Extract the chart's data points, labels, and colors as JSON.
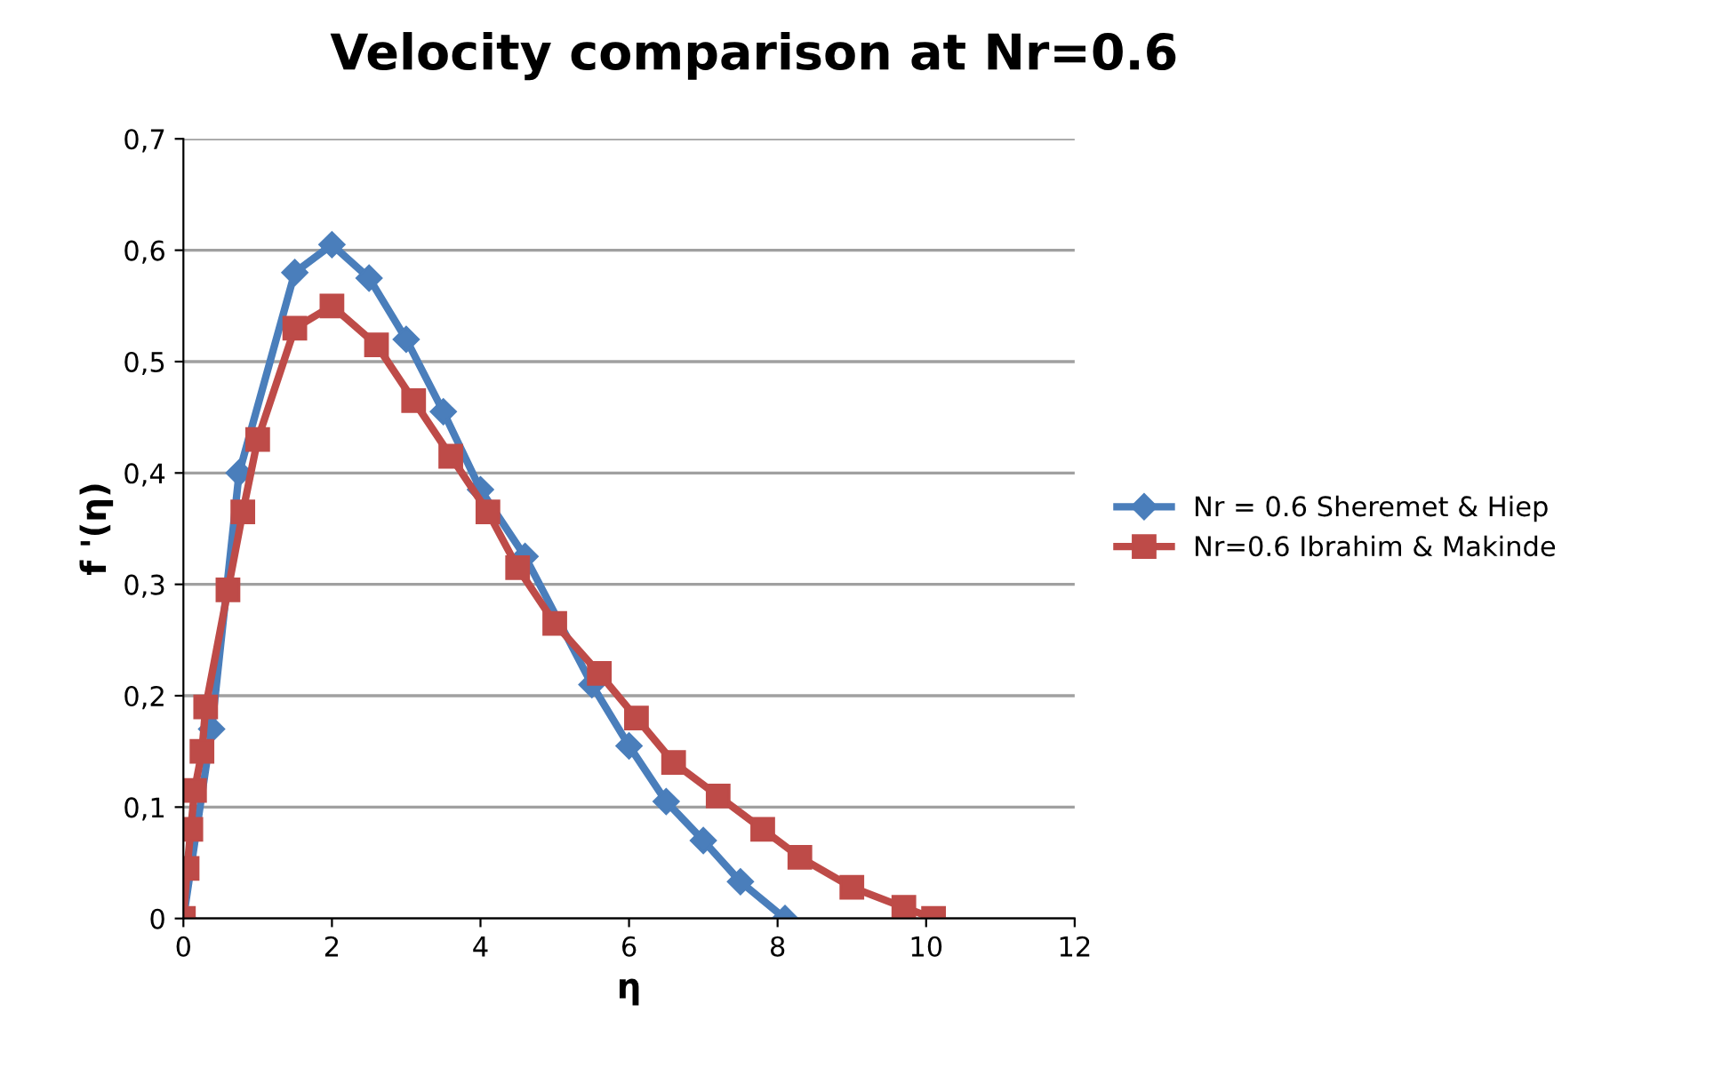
{
  "chart_data": {
    "type": "line",
    "title": "Velocity comparison at Nr=0.6",
    "xlabel": "η",
    "ylabel": "f '(η)",
    "xlim": [
      0,
      12
    ],
    "xticks": [
      0,
      2,
      4,
      6,
      8,
      10,
      12
    ],
    "ylim": [
      0,
      0.7
    ],
    "yticks": [
      {
        "value": 0,
        "label": "0"
      },
      {
        "value": 0.1,
        "label": "0,1"
      },
      {
        "value": 0.2,
        "label": "0,2"
      },
      {
        "value": 0.3,
        "label": "0,3"
      },
      {
        "value": 0.4,
        "label": "0,4"
      },
      {
        "value": 0.5,
        "label": "0,5"
      },
      {
        "value": 0.6,
        "label": "0,6"
      },
      {
        "value": 0.7,
        "label": "0,7"
      }
    ],
    "grid": "y",
    "legend": "right",
    "series": [
      {
        "name": "Nr = 0.6 Sheremet & Hiep",
        "color": "#4a7ebb",
        "marker": "diamond",
        "x": [
          0,
          0.38,
          0.75,
          1.5,
          2.0,
          2.5,
          3.0,
          3.5,
          4.0,
          4.6,
          5.5,
          6.0,
          6.5,
          7.0,
          7.5,
          8.1
        ],
        "values": [
          0,
          0.17,
          0.4,
          0.58,
          0.605,
          0.575,
          0.52,
          0.455,
          0.385,
          0.325,
          0.21,
          0.155,
          0.105,
          0.07,
          0.033,
          0
        ]
      },
      {
        "name": "Nr=0.6 Ibrahim & Makinde",
        "color": "#be4b48",
        "marker": "square",
        "x": [
          0,
          0.05,
          0.1,
          0.15,
          0.25,
          0.3,
          0.6,
          0.8,
          1.0,
          1.5,
          2.0,
          2.6,
          3.1,
          3.6,
          4.1,
          4.5,
          5.0,
          5.6,
          6.1,
          6.6,
          7.2,
          7.8,
          8.3,
          9.0,
          9.7,
          10.1
        ],
        "values": [
          0,
          0.045,
          0.08,
          0.115,
          0.15,
          0.19,
          0.295,
          0.365,
          0.43,
          0.53,
          0.55,
          0.515,
          0.465,
          0.415,
          0.365,
          0.315,
          0.265,
          0.22,
          0.18,
          0.14,
          0.11,
          0.08,
          0.055,
          0.028,
          0.01,
          0
        ]
      }
    ]
  }
}
